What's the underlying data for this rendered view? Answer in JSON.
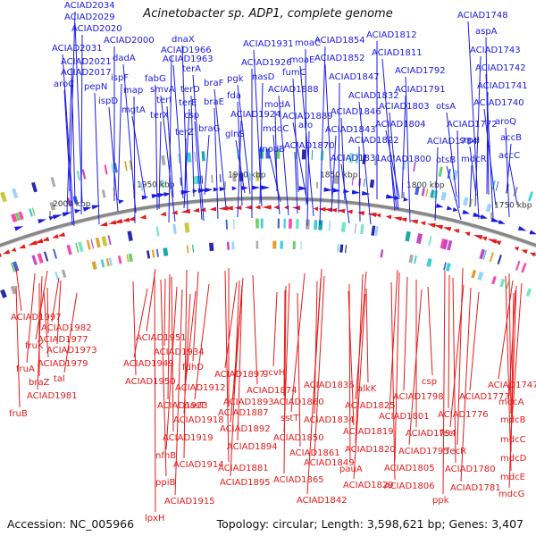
{
  "title": "Acinetobacter sp. ADP1, complete genome",
  "footer": {
    "accession": "Accession: NC_005966",
    "summary": "Topology: circular; Length: 3,598,621 bp; Genes: 3,407"
  },
  "ticks": [
    "2000 kbp",
    "1950 kbp",
    "1900 kbp",
    "1850 kbp",
    "1800 kbp",
    "1750 kbp"
  ],
  "colors": {
    "forward": "#1a1ae6",
    "reverse": "#e61a1a",
    "backbone": "#888888"
  },
  "forward_labels": [
    "ACIAD2034",
    "ACIAD2029",
    "ACIAD2020",
    "ACIAD2031",
    "ACIAD2021",
    "ACIAD2017",
    "aroC",
    "ACIAD2000",
    "dadA",
    "pepN",
    "ispF",
    "ispD",
    "map",
    "mgtA",
    "dnaX",
    "ACIAD1966",
    "ACIAD1963",
    "fabG",
    "smvA",
    "terI",
    "terX",
    "terA",
    "terD",
    "terE",
    "csp",
    "terZ",
    "braF",
    "braE",
    "braG",
    "ACIAD1931",
    "ACIAD1926",
    "pgk",
    "fda",
    "ACIAD1924",
    "glnS",
    "moaC",
    "moaE",
    "fumC",
    "nasD",
    "ACIAD1888",
    "modA",
    "ACIAD1889",
    "modC",
    "aro",
    "modB",
    "ACIAD1870",
    "ACIAD1854",
    "ACIAD1852",
    "ACIAD1847",
    "ACIAD1832",
    "ACIAD1846",
    "ACIAD1843",
    "ACIAD1831",
    "ACIAD1812",
    "ACIAD1811",
    "ACIAD1792",
    "ACIAD1791",
    "ACIAD1803",
    "ACIAD1822",
    "ACIAD1804",
    "ACIAD1800",
    "ACIAD1784",
    "otsA",
    "ACIAD1772",
    "otsB",
    "srpH",
    "mdcR",
    "ACIAD1748",
    "aspA",
    "ACIAD1743",
    "ACIAD1742",
    "ACIAD1741",
    "ACIAD1740",
    "aroQ",
    "accB",
    "accC"
  ],
  "reverse_labels": [
    "ACIAD1997",
    "ACIAD1982",
    "ACIAD1977",
    "fruK",
    "ACIAD1973",
    "ACIAD1979",
    "fruA",
    "braZ",
    "tal",
    "ACIAD1981",
    "fruB",
    "ACIAD1951",
    "ACIAD1934",
    "ACIAD1949",
    "fdhD",
    "ACIAD1950",
    "ACIAD1912",
    "ACIAD1933",
    "nasT",
    "ACIAD1918",
    "ACIAD1919",
    "nfnB",
    "ACIAD1914",
    "ppiB",
    "ACIAD1915",
    "lpxH",
    "ACIAD1897",
    "gcvH",
    "ACIAD1874",
    "ACIAD1893",
    "ACIAD1887",
    "ACIAD1892",
    "ACIAD1894",
    "ACIAD1881",
    "ACIAD1895",
    "ACIAD1860",
    "sstT",
    "ACIAD1850",
    "ACIAD1861",
    "ACIAD1849",
    "ACIAD1865",
    "ACIAD1842",
    "ACIAD1836",
    "alkK",
    "ACIAD1825",
    "ACIAD1834",
    "ACIAD1819",
    "ACIAD1820",
    "pauA",
    "ACIAD1829",
    "ACIAD1798",
    "csp",
    "ACIAD1801",
    "ACIAD1794",
    "ACIAD1795",
    "ACIAD1805",
    "ACIAD1806",
    "ACIAD1773",
    "ACIAD1776",
    "fecI",
    "fecR",
    "ACIAD1780",
    "ACIAD1781",
    "ppk",
    "ACIAD1747",
    "mdcA",
    "mdcB",
    "mdcC",
    "mdcD",
    "mdcE",
    "mdcG"
  ]
}
